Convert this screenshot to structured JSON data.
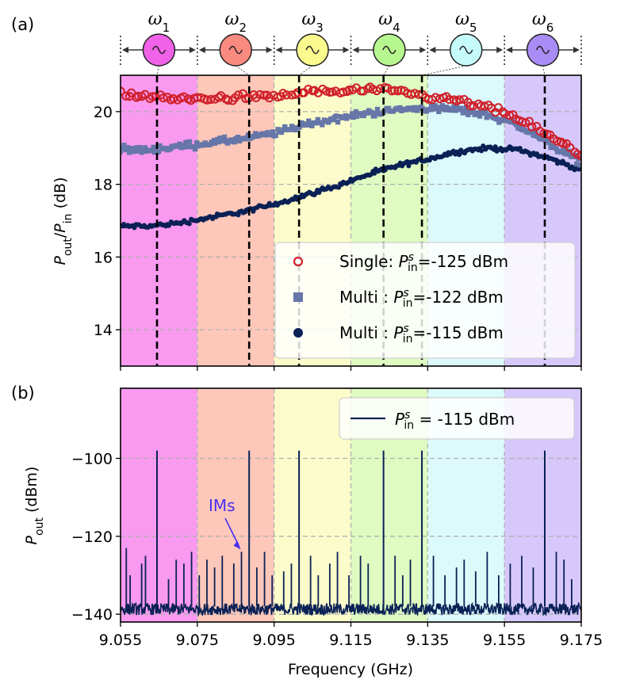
{
  "figure": {
    "panel_a_label": "(a)",
    "panel_b_label": "(b)",
    "x_axis_label": "Frequency (GHz)",
    "band_colors": [
      "#f99af0",
      "#fdc7b9",
      "#fcfccb",
      "#dffbc2",
      "#dcfafb",
      "#d7c8fb"
    ],
    "tones": [
      {
        "symbol": "ω",
        "sub": "1",
        "color": "#f062e7",
        "glyph": "sine-wave-icon"
      },
      {
        "symbol": "ω",
        "sub": "2",
        "color": "#f98a80",
        "glyph": "sine-wave-icon"
      },
      {
        "symbol": "ω",
        "sub": "3",
        "color": "#fafa8e",
        "glyph": "sine-wave-icon"
      },
      {
        "symbol": "ω",
        "sub": "4",
        "color": "#b7f78f",
        "glyph": "sine-wave-icon"
      },
      {
        "symbol": "ω",
        "sub": "5",
        "color": "#c6fbfb",
        "glyph": "sine-wave-icon"
      },
      {
        "symbol": "ω",
        "sub": "6",
        "color": "#a98cf5",
        "glyph": "sine-wave-icon"
      }
    ],
    "pump_frequencies": [
      9.0645,
      9.0885,
      9.1015,
      9.1235,
      9.1335,
      9.1655
    ],
    "band_edges": [
      9.055,
      9.075,
      9.095,
      9.115,
      9.135,
      9.155,
      9.175
    ]
  },
  "chart_data": [
    {
      "type": "scatter",
      "panel": "a",
      "ylabel": {
        "main": "P",
        "sub1": "out",
        "slash": "/",
        "main2": "P",
        "sub2": "in",
        "unit": " (dB)"
      },
      "xlim": [
        9.055,
        9.175
      ],
      "ylim": [
        13,
        21
      ],
      "x_ticks": [
        "9.055",
        "9.075",
        "9.095",
        "9.115",
        "9.135",
        "9.155",
        "9.175"
      ],
      "y_ticks": [
        {
          "v": 14,
          "label": "14"
        },
        {
          "v": 16,
          "label": "16"
        },
        {
          "v": 18,
          "label": "18"
        },
        {
          "v": 20,
          "label": "20"
        }
      ],
      "grid": true,
      "legend_position": "bottom-right",
      "series": [
        {
          "legend": {
            "a": "Single: ",
            "p": "P",
            "sub": "in",
            "sup": "s",
            "b": "=-125 dBm"
          },
          "marker": "circle-open",
          "color": "#d0202a",
          "x": [
            9.055,
            9.063,
            9.071,
            9.079,
            9.087,
            9.095,
            9.103,
            9.111,
            9.119,
            9.127,
            9.135,
            9.143,
            9.151,
            9.159,
            9.167,
            9.175
          ],
          "y": [
            20.5,
            20.4,
            20.35,
            20.35,
            20.4,
            20.4,
            20.55,
            20.55,
            20.6,
            20.55,
            20.4,
            20.3,
            20.1,
            19.8,
            19.3,
            18.8
          ]
        },
        {
          "legend": {
            "a": "Multi  : ",
            "p": "P",
            "sub": "in",
            "sup": "s",
            "b": "=-122 dBm"
          },
          "marker": "square",
          "color": "#6676a8",
          "x": [
            9.055,
            9.063,
            9.071,
            9.079,
            9.087,
            9.095,
            9.103,
            9.111,
            9.119,
            9.127,
            9.135,
            9.143,
            9.151,
            9.159,
            9.167,
            9.175
          ],
          "y": [
            18.95,
            18.95,
            19.05,
            19.15,
            19.25,
            19.4,
            19.65,
            19.8,
            19.95,
            20.05,
            20.1,
            20.05,
            19.9,
            19.6,
            19.1,
            18.6
          ]
        },
        {
          "legend": {
            "a": "Multi  : ",
            "p": "P",
            "sub": "in",
            "sup": "s",
            "b": "=-115 dBm"
          },
          "marker": "circle",
          "color": "#0a2155",
          "x": [
            9.055,
            9.063,
            9.071,
            9.079,
            9.087,
            9.095,
            9.103,
            9.111,
            9.119,
            9.127,
            9.135,
            9.143,
            9.151,
            9.159,
            9.167,
            9.175
          ],
          "y": [
            16.85,
            16.85,
            16.95,
            17.1,
            17.25,
            17.45,
            17.7,
            17.95,
            18.25,
            18.5,
            18.7,
            18.9,
            19.0,
            18.95,
            18.7,
            18.4
          ]
        }
      ]
    },
    {
      "type": "line",
      "panel": "b",
      "ylabel": {
        "main": "P",
        "sub": "out",
        "unit": " (dBm)"
      },
      "xlim": [
        9.055,
        9.175
      ],
      "ylim": [
        -142,
        -82
      ],
      "x_ticks": [
        "9.055",
        "9.075",
        "9.095",
        "9.115",
        "9.135",
        "9.155",
        "9.175"
      ],
      "y_ticks": [
        {
          "v": -140,
          "label": "−140"
        },
        {
          "v": -120,
          "label": "−120"
        },
        {
          "v": -100,
          "label": "−100"
        }
      ],
      "grid": true,
      "legend_position": "top-right",
      "noise_floor": -139,
      "series": [
        {
          "legend": {
            "p": "P",
            "sub": "in",
            "sup": "s",
            "b": " = -115 dBm"
          },
          "color": "#0a2155",
          "pump_peak": -98,
          "im_peaks": [
            [
              9.0565,
              -123
            ],
            [
              9.0575,
              -130
            ],
            [
              9.0605,
              -127
            ],
            [
              9.0615,
              -125
            ],
            [
              9.0675,
              -131
            ],
            [
              9.0695,
              -126
            ],
            [
              9.0715,
              -127
            ],
            [
              9.0735,
              -124
            ],
            [
              9.0755,
              -130
            ],
            [
              9.0775,
              -126
            ],
            [
              9.0795,
              -128
            ],
            [
              9.0815,
              -125
            ],
            [
              9.0845,
              -127
            ],
            [
              9.0865,
              -124
            ],
            [
              9.0905,
              -128
            ],
            [
              9.0925,
              -124
            ],
            [
              9.0945,
              -130
            ],
            [
              9.0975,
              -129
            ],
            [
              9.0995,
              -127
            ],
            [
              9.1045,
              -125
            ],
            [
              9.1065,
              -130
            ],
            [
              9.1095,
              -127
            ],
            [
              9.1115,
              -124
            ],
            [
              9.1145,
              -130
            ],
            [
              9.1175,
              -125
            ],
            [
              9.1195,
              -127
            ],
            [
              9.1265,
              -125
            ],
            [
              9.1285,
              -130
            ],
            [
              9.1305,
              -126
            ],
            [
              9.1365,
              -125
            ],
            [
              9.1395,
              -130
            ],
            [
              9.1425,
              -128
            ],
            [
              9.1445,
              -126
            ],
            [
              9.1475,
              -129
            ],
            [
              9.1505,
              -124
            ],
            [
              9.1535,
              -130
            ],
            [
              9.1565,
              -127
            ],
            [
              9.1595,
              -125
            ],
            [
              9.1625,
              -128
            ],
            [
              9.1685,
              -124
            ],
            [
              9.1705,
              -126
            ],
            [
              9.1725,
              -131
            ]
          ]
        }
      ],
      "annotation": {
        "text": "IMs",
        "color": "#4a2ff0",
        "target_x": 9.0865,
        "target_y": -124
      }
    }
  ]
}
